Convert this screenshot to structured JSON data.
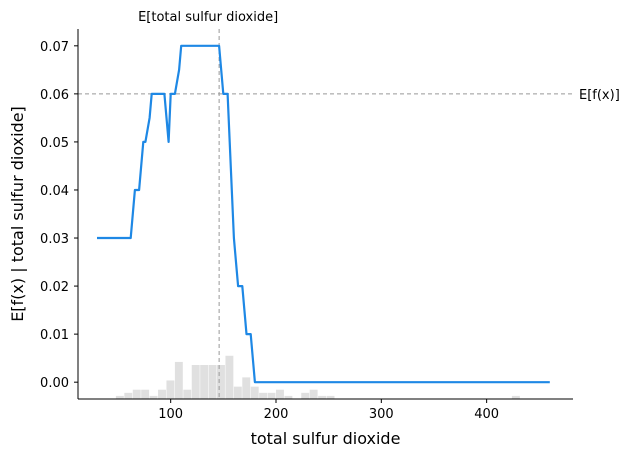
{
  "chart_data": {
    "type": "line",
    "xlabel": "total sulfur dioxide",
    "ylabel": "E[f(x) | total sulfur dioxide]",
    "xlim": [
      12,
      482
    ],
    "ylim": [
      -0.0035,
      0.0735
    ],
    "x_ticks": [
      100,
      200,
      300,
      400
    ],
    "y_ticks": [
      0.0,
      0.01,
      0.02,
      0.03,
      0.04,
      0.05,
      0.06,
      0.07
    ],
    "y_tick_labels": [
      "0.00",
      "0.01",
      "0.02",
      "0.03",
      "0.04",
      "0.05",
      "0.06",
      "0.07"
    ],
    "grid": false,
    "colors": {
      "line": "#1e88e5",
      "reference": "#999999",
      "histogram": "#cccccc"
    },
    "series": [
      {
        "x": [
          30,
          62,
          64,
          66,
          70,
          72,
          74,
          76,
          80,
          82,
          84,
          88,
          90,
          94,
          96,
          98,
          100,
          102,
          104,
          108,
          110,
          112,
          114,
          118,
          128,
          138,
          146,
          148,
          150,
          154,
          156,
          158,
          160,
          162,
          164,
          166,
          168,
          170,
          172,
          176,
          178,
          180,
          182,
          184,
          200,
          250,
          300,
          350,
          400,
          460
        ],
        "y": [
          0.03,
          0.03,
          0.035,
          0.04,
          0.04,
          0.045,
          0.05,
          0.05,
          0.055,
          0.06,
          0.06,
          0.06,
          0.06,
          0.06,
          0.055,
          0.05,
          0.06,
          0.06,
          0.06,
          0.065,
          0.07,
          0.07,
          0.07,
          0.07,
          0.07,
          0.07,
          0.07,
          0.065,
          0.06,
          0.06,
          0.05,
          0.04,
          0.03,
          0.025,
          0.02,
          0.02,
          0.02,
          0.015,
          0.01,
          0.01,
          0.005,
          0.0,
          0.0,
          0.0,
          0.0,
          0.0,
          0.0,
          0.0,
          0.0,
          0.0
        ]
      }
    ],
    "reference_lines": {
      "x_expected": {
        "value": 146,
        "label": "E[total sulfur dioxide]"
      },
      "y_expected": {
        "value": 0.06,
        "label": "E[f(x)]"
      }
    },
    "histogram": {
      "bin_width": 8,
      "bins": [
        {
          "x": 48,
          "count": 1
        },
        {
          "x": 56,
          "count": 2
        },
        {
          "x": 64,
          "count": 3
        },
        {
          "x": 72,
          "count": 3
        },
        {
          "x": 80,
          "count": 1
        },
        {
          "x": 88,
          "count": 3
        },
        {
          "x": 96,
          "count": 6
        },
        {
          "x": 104,
          "count": 12
        },
        {
          "x": 112,
          "count": 3
        },
        {
          "x": 120,
          "count": 11
        },
        {
          "x": 128,
          "count": 11
        },
        {
          "x": 136,
          "count": 11
        },
        {
          "x": 144,
          "count": 11
        },
        {
          "x": 152,
          "count": 14
        },
        {
          "x": 160,
          "count": 4
        },
        {
          "x": 168,
          "count": 7
        },
        {
          "x": 176,
          "count": 4
        },
        {
          "x": 184,
          "count": 2
        },
        {
          "x": 192,
          "count": 2
        },
        {
          "x": 200,
          "count": 3
        },
        {
          "x": 208,
          "count": 1
        },
        {
          "x": 224,
          "count": 2
        },
        {
          "x": 232,
          "count": 3
        },
        {
          "x": 240,
          "count": 1
        },
        {
          "x": 248,
          "count": 1
        },
        {
          "x": 424,
          "count": 1
        }
      ],
      "max_count_ratio": 14
    }
  }
}
